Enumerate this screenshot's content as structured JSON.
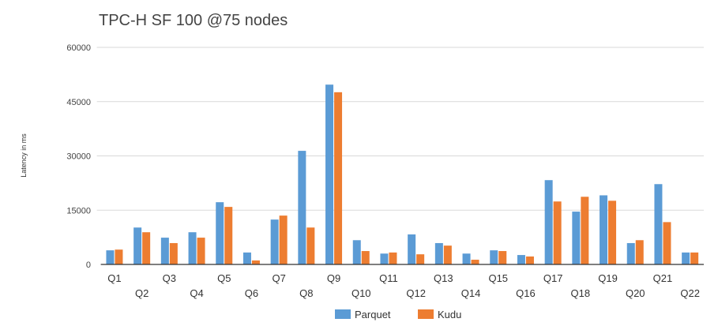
{
  "chart_data": {
    "type": "bar",
    "title": "TPC-H SF 100 @75 nodes",
    "xlabel": "",
    "ylabel": "Latency in ms",
    "ylim": [
      0,
      60000
    ],
    "yticks": [
      0,
      15000,
      30000,
      45000,
      60000
    ],
    "grid": true,
    "legend_position": "bottom",
    "categories": [
      "Q1",
      "Q2",
      "Q3",
      "Q4",
      "Q5",
      "Q6",
      "Q7",
      "Q8",
      "Q9",
      "Q10",
      "Q11",
      "Q12",
      "Q13",
      "Q14",
      "Q15",
      "Q16",
      "Q17",
      "Q18",
      "Q19",
      "Q20",
      "Q21",
      "Q22"
    ],
    "series": [
      {
        "name": "Parquet",
        "color": "#5b9bd5",
        "values": [
          3900,
          10200,
          7400,
          8900,
          17200,
          3300,
          12400,
          31400,
          49700,
          6700,
          3000,
          8300,
          5900,
          3000,
          3900,
          2600,
          23300,
          14600,
          19100,
          5900,
          22200,
          3300
        ]
      },
      {
        "name": "Kudu",
        "color": "#ed7d31",
        "values": [
          4100,
          8900,
          5900,
          7400,
          15900,
          1100,
          13500,
          10200,
          47600,
          3700,
          3300,
          2800,
          5200,
          1300,
          3700,
          2200,
          17400,
          18700,
          17600,
          6700,
          11700,
          3300
        ]
      }
    ]
  }
}
